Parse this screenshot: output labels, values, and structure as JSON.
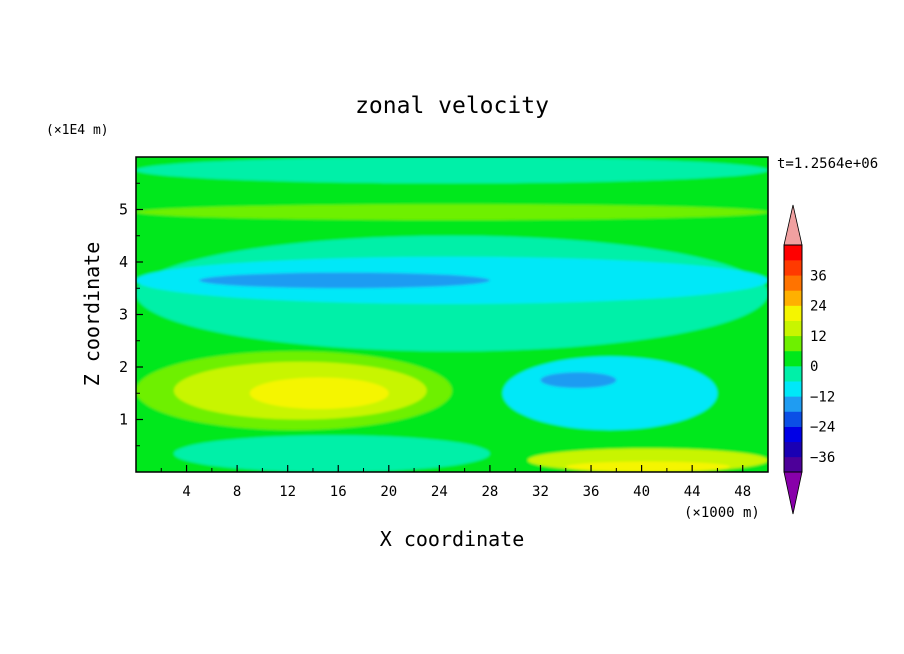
{
  "chart_data": {
    "type": "heatmap",
    "title": "zonal velocity",
    "xlabel": "X coordinate",
    "ylabel": "Z coordinate",
    "x_unit_label": "(×1000 m)",
    "y_unit_label": "(×1E4 m)",
    "time_label": "t=1.2564e+06",
    "xlim": [
      0,
      50
    ],
    "ylim": [
      0,
      6
    ],
    "x_ticks": [
      4,
      8,
      12,
      16,
      20,
      24,
      28,
      32,
      36,
      40,
      44,
      48
    ],
    "y_ticks": [
      1,
      2,
      3,
      4,
      5
    ],
    "colorbar": {
      "levels": [
        -42,
        -36,
        -30,
        -24,
        -18,
        -12,
        -6,
        0,
        6,
        12,
        18,
        24,
        30,
        36,
        42
      ],
      "tick_labels": [
        "36",
        "24",
        "12",
        "0",
        "−12",
        "−24",
        "−36"
      ],
      "tick_values": [
        36,
        24,
        12,
        0,
        -12,
        -24,
        -36
      ],
      "colors": [
        "#4d0099",
        "#1a00b3",
        "#0000e6",
        "#0b4fe6",
        "#1f9cf2",
        "#00e8f8",
        "#00f0a8",
        "#00e81a",
        "#6ef000",
        "#c8f500",
        "#f5f500",
        "#ffb000",
        "#ff7300",
        "#ff3a00",
        "#ff0000"
      ],
      "extend_low_color": "#8800aa",
      "extend_high_color": "#f0a0a0"
    },
    "regions": [
      {
        "level": 0,
        "x": [
          0,
          50
        ],
        "z": [
          0,
          6
        ],
        "note": "background field"
      },
      {
        "level": -6,
        "x": [
          0,
          50
        ],
        "z": [
          2.3,
          4.5
        ],
        "note": "mid-level band"
      },
      {
        "level": -12,
        "x": [
          0,
          50
        ],
        "z": [
          3.2,
          4.1
        ],
        "note": "cyan band"
      },
      {
        "level": -18,
        "x": [
          5,
          28
        ],
        "z": [
          3.5,
          3.8
        ],
        "note": "blue streak"
      },
      {
        "level": -12,
        "x": [
          29,
          46
        ],
        "z": [
          0.8,
          2.2
        ],
        "note": "lower-right cyan cell"
      },
      {
        "level": -18,
        "x": [
          32,
          38
        ],
        "z": [
          1.6,
          1.9
        ],
        "note": "blue patch"
      },
      {
        "level": 6,
        "x": [
          0,
          25
        ],
        "z": [
          0.8,
          2.3
        ],
        "note": "lower-left jet"
      },
      {
        "level": 12,
        "x": [
          3,
          23
        ],
        "z": [
          1.0,
          2.1
        ],
        "note": "jet inner"
      },
      {
        "level": 18,
        "x": [
          9,
          20
        ],
        "z": [
          1.2,
          1.8
        ],
        "note": "jet core"
      },
      {
        "level": -6,
        "x": [
          3,
          28
        ],
        "z": [
          0,
          0.7
        ],
        "note": "bottom cyan-green"
      },
      {
        "level": 12,
        "x": [
          31,
          50
        ],
        "z": [
          0,
          0.45
        ],
        "note": "bottom-right jet"
      },
      {
        "level": 18,
        "x": [
          34,
          47
        ],
        "z": [
          0,
          0.2
        ],
        "note": "bottom-right core"
      },
      {
        "level": 6,
        "x": [
          0,
          50
        ],
        "z": [
          4.8,
          5.1
        ],
        "note": "upper bands"
      },
      {
        "level": -6,
        "x": [
          0,
          50
        ],
        "z": [
          5.5,
          6.0
        ],
        "note": "top band"
      }
    ]
  }
}
